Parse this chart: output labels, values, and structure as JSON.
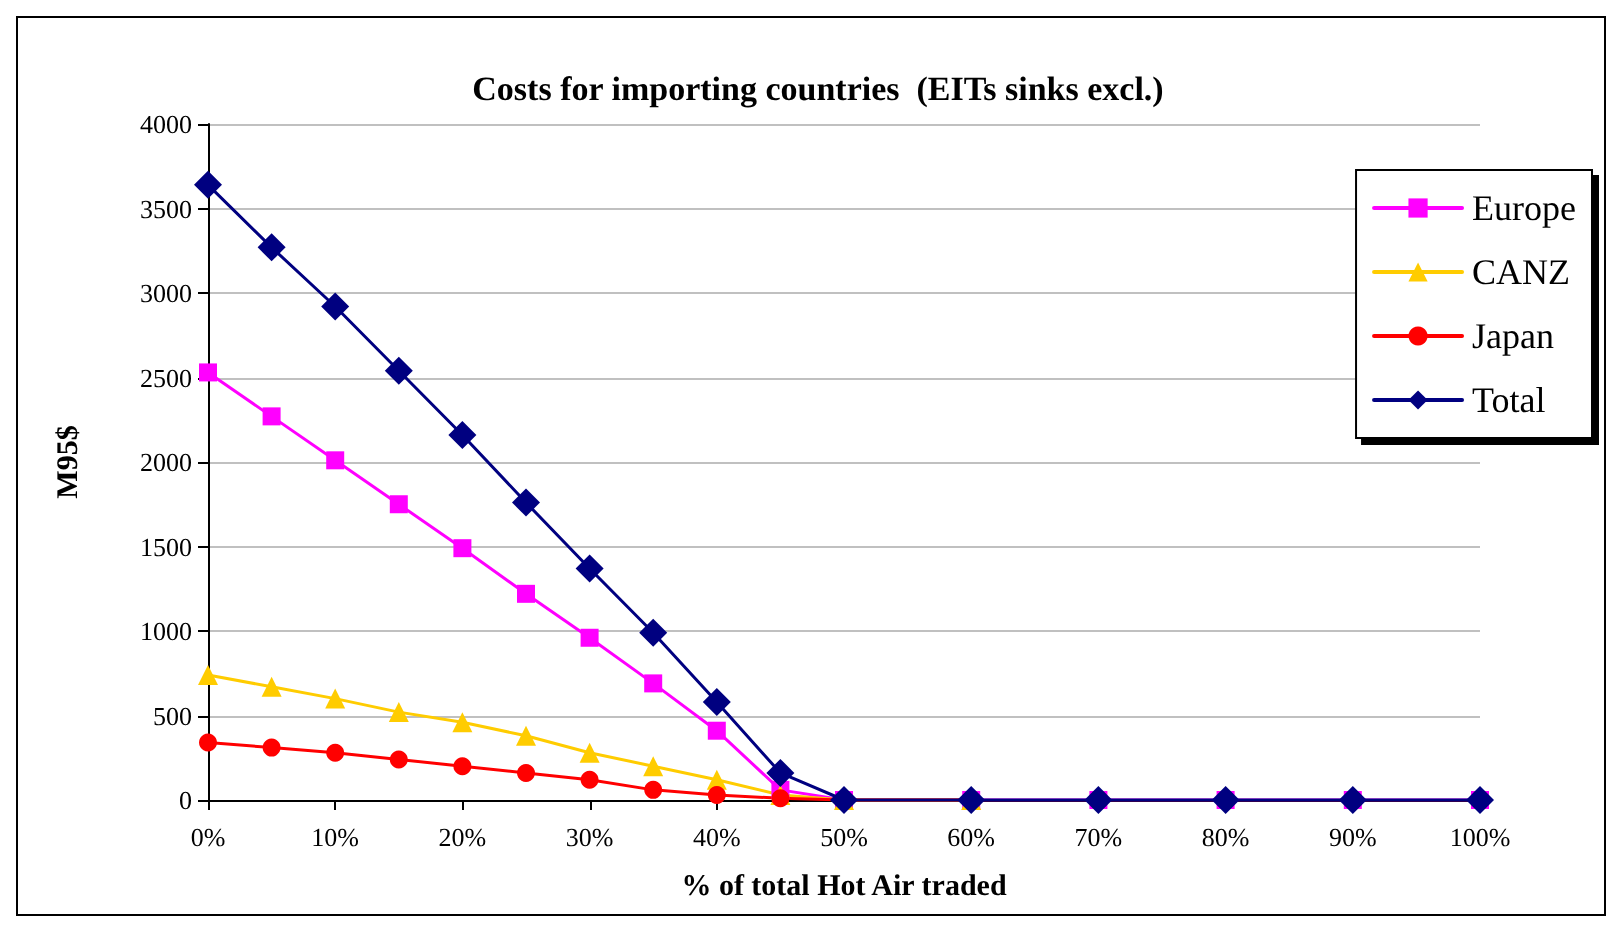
{
  "chart_data": {
    "type": "line",
    "title": "Costs for importing countries  (EITs sinks excl.)",
    "xlabel": "% of total Hot Air traded",
    "ylabel": "M95$",
    "x": [
      0,
      5,
      10,
      15,
      20,
      25,
      30,
      35,
      40,
      45,
      50,
      60,
      70,
      80,
      90,
      100
    ],
    "xlim": [
      0,
      100
    ],
    "xticks": [
      {
        "value": 0,
        "label": "0%"
      },
      {
        "value": 10,
        "label": "10%"
      },
      {
        "value": 20,
        "label": "20%"
      },
      {
        "value": 30,
        "label": "30%"
      },
      {
        "value": 40,
        "label": "40%"
      },
      {
        "value": 50,
        "label": "50%"
      },
      {
        "value": 60,
        "label": "60%"
      },
      {
        "value": 70,
        "label": "70%"
      },
      {
        "value": 80,
        "label": "80%"
      },
      {
        "value": 90,
        "label": "90%"
      },
      {
        "value": 100,
        "label": "100%"
      }
    ],
    "ylim": [
      0,
      4000
    ],
    "yticks": [
      0,
      500,
      1000,
      1500,
      2000,
      2500,
      3000,
      3500,
      4000
    ],
    "grid": "y",
    "legend": "right",
    "line_style": "solid",
    "series": [
      {
        "name": "Europe",
        "color": "#ff00ff",
        "marker": "square",
        "values": [
          2530,
          2270,
          2010,
          1750,
          1490,
          1220,
          960,
          690,
          410,
          60,
          0,
          0,
          0,
          0,
          0,
          0
        ]
      },
      {
        "name": "CANZ",
        "color": "#ffcc00",
        "marker": "triangle",
        "values": [
          740,
          670,
          600,
          520,
          460,
          380,
          280,
          200,
          120,
          30,
          0,
          0,
          null,
          null,
          null,
          null
        ]
      },
      {
        "name": "Japan",
        "color": "#ff0000",
        "marker": "circle",
        "values": [
          340,
          310,
          280,
          240,
          200,
          160,
          120,
          60,
          30,
          10,
          0,
          0,
          null,
          null,
          null,
          null
        ]
      },
      {
        "name": "Total",
        "color": "#000080",
        "marker": "diamond",
        "values": [
          3640,
          3270,
          2920,
          2540,
          2160,
          1760,
          1370,
          990,
          580,
          160,
          0,
          0,
          0,
          0,
          0,
          0
        ]
      }
    ]
  }
}
